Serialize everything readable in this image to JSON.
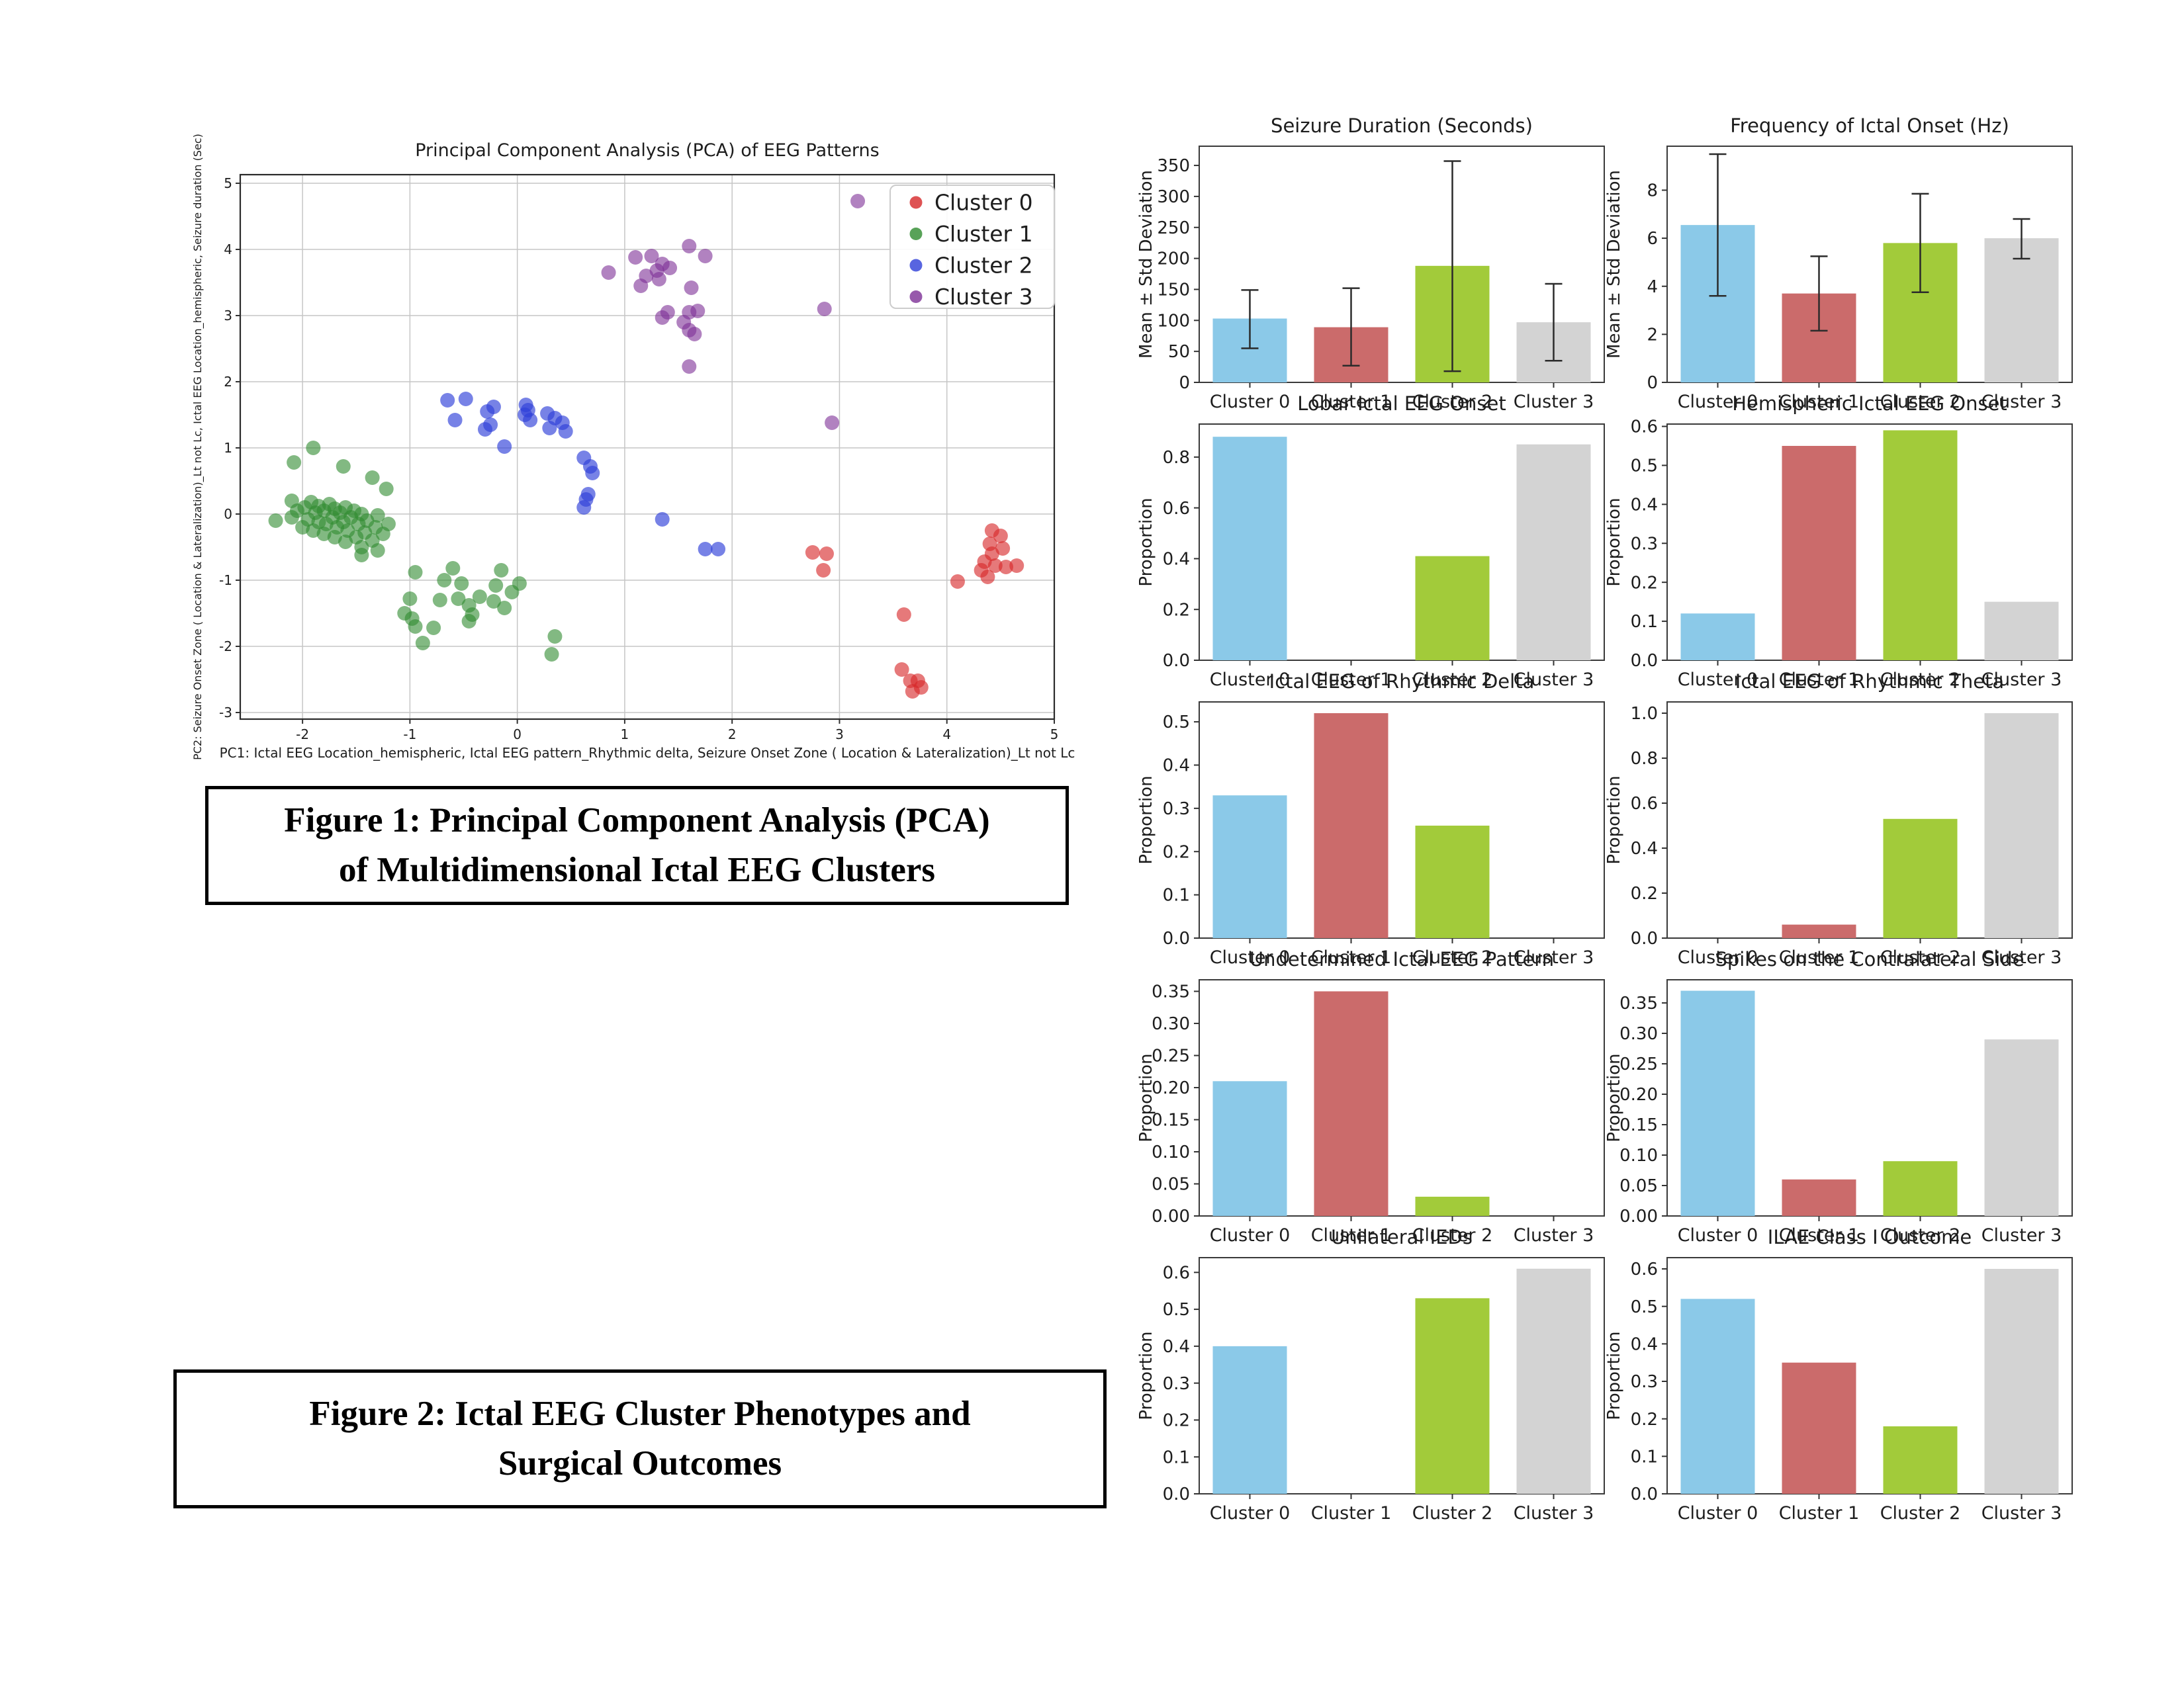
{
  "captions": {
    "figure1": {
      "lines": [
        "Figure 1: Principal Component Analysis (PCA)",
        "of Multidimensional Ictal EEG Clusters"
      ]
    },
    "figure2": {
      "lines": [
        "Figure 2: Ictal EEG Cluster Phenotypes and",
        "Surgical Outcomes"
      ]
    }
  },
  "bar_palette": [
    "#8bc9e8",
    "#cb6b6b",
    "#a2cb3a",
    "#d3d3d3"
  ],
  "chart_data": [
    {
      "type": "scatter",
      "title": "Principal Component Analysis (PCA) of EEG Patterns",
      "xlabel": "PC1: Ictal EEG Location_hemispheric, Ictal EEG pattern_Rhythmic delta, Seizure Onset Zone ( Location & Lateralization)_Lt not Lc",
      "ylabel": "PC2: Seizure Onset Zone ( Location & Lateralization)_Lt not Lc, Ictal EEG Location_hemispheric, Seizure duration (Sec)",
      "xlim": [
        -2.58,
        5.0
      ],
      "ylim": [
        -3.1,
        5.13
      ],
      "xticks": [
        -2,
        -1,
        0,
        1,
        2,
        3,
        4,
        5
      ],
      "yticks": [
        -3,
        -2,
        -1,
        0,
        1,
        2,
        3,
        4,
        5
      ],
      "grid": true,
      "legend_position": "upper right",
      "series": [
        {
          "name": "Cluster 0",
          "color": "#d62728",
          "opacity": 0.62,
          "points": [
            [
              2.75,
              -0.58
            ],
            [
              2.88,
              -0.6
            ],
            [
              2.85,
              -0.85
            ],
            [
              4.42,
              -0.25
            ],
            [
              4.5,
              -0.33
            ],
            [
              4.4,
              -0.45
            ],
            [
              4.52,
              -0.52
            ],
            [
              4.42,
              -0.6
            ],
            [
              4.35,
              -0.72
            ],
            [
              4.45,
              -0.78
            ],
            [
              4.32,
              -0.85
            ],
            [
              4.55,
              -0.8
            ],
            [
              4.65,
              -0.78
            ],
            [
              4.38,
              -0.95
            ],
            [
              4.1,
              -1.02
            ],
            [
              3.6,
              -1.52
            ],
            [
              3.58,
              -2.35
            ],
            [
              3.66,
              -2.52
            ],
            [
              3.73,
              -2.52
            ],
            [
              3.76,
              -2.62
            ],
            [
              3.68,
              -2.68
            ]
          ]
        },
        {
          "name": "Cluster 1",
          "color": "#2e8b2e",
          "opacity": 0.6,
          "points": [
            [
              -2.25,
              -0.1
            ],
            [
              -2.1,
              0.2
            ],
            [
              -2.1,
              -0.05
            ],
            [
              -2.05,
              0.05
            ],
            [
              -2.0,
              -0.2
            ],
            [
              -1.98,
              0.1
            ],
            [
              -1.95,
              -0.08
            ],
            [
              -1.92,
              0.18
            ],
            [
              -1.9,
              -0.25
            ],
            [
              -1.88,
              0.02
            ],
            [
              -1.85,
              -0.12
            ],
            [
              -1.85,
              0.12
            ],
            [
              -1.8,
              -0.3
            ],
            [
              -1.8,
              0.05
            ],
            [
              -1.78,
              -0.15
            ],
            [
              -1.75,
              0.15
            ],
            [
              -1.72,
              -0.05
            ],
            [
              -1.7,
              -0.35
            ],
            [
              -1.7,
              0.08
            ],
            [
              -1.68,
              -0.2
            ],
            [
              -1.65,
              0.02
            ],
            [
              -1.62,
              -0.12
            ],
            [
              -1.6,
              -0.42
            ],
            [
              -1.6,
              0.1
            ],
            [
              -1.58,
              -0.25
            ],
            [
              -1.55,
              -0.05
            ],
            [
              -1.52,
              0.05
            ],
            [
              -1.5,
              -0.35
            ],
            [
              -1.48,
              -0.15
            ],
            [
              -1.45,
              -0.5
            ],
            [
              -1.45,
              0.0
            ],
            [
              -1.42,
              -0.28
            ],
            [
              -1.4,
              -0.1
            ],
            [
              -1.35,
              -0.4
            ],
            [
              -1.32,
              -0.2
            ],
            [
              -1.3,
              -0.02
            ],
            [
              -1.25,
              -0.3
            ],
            [
              -1.2,
              -0.15
            ],
            [
              -1.45,
              -0.62
            ],
            [
              -1.3,
              -0.55
            ],
            [
              -1.9,
              1.0
            ],
            [
              -2.08,
              0.78
            ],
            [
              -1.62,
              0.72
            ],
            [
              -1.35,
              0.55
            ],
            [
              -1.22,
              0.38
            ],
            [
              -0.95,
              -0.88
            ],
            [
              -0.6,
              -0.82
            ],
            [
              -0.15,
              -0.85
            ],
            [
              -0.68,
              -1.0
            ],
            [
              -0.52,
              -1.05
            ],
            [
              -0.2,
              -1.08
            ],
            [
              0.02,
              -1.05
            ],
            [
              -0.05,
              -1.18
            ],
            [
              -1.0,
              -1.28
            ],
            [
              -0.72,
              -1.3
            ],
            [
              -0.55,
              -1.28
            ],
            [
              -0.35,
              -1.25
            ],
            [
              -0.45,
              -1.38
            ],
            [
              -0.22,
              -1.32
            ],
            [
              -0.12,
              -1.42
            ],
            [
              -1.05,
              -1.5
            ],
            [
              -0.98,
              -1.58
            ],
            [
              -0.42,
              -1.52
            ],
            [
              -0.45,
              -1.62
            ],
            [
              -0.95,
              -1.7
            ],
            [
              -0.78,
              -1.72
            ],
            [
              -0.88,
              -1.95
            ],
            [
              0.35,
              -1.85
            ],
            [
              0.32,
              -2.12
            ]
          ]
        },
        {
          "name": "Cluster 2",
          "color": "#2e3fd8",
          "opacity": 0.65,
          "points": [
            [
              -0.65,
              1.72
            ],
            [
              -0.48,
              1.74
            ],
            [
              -0.58,
              1.42
            ],
            [
              -0.28,
              1.55
            ],
            [
              -0.22,
              1.62
            ],
            [
              -0.3,
              1.28
            ],
            [
              -0.25,
              1.35
            ],
            [
              0.08,
              1.65
            ],
            [
              0.1,
              1.57
            ],
            [
              0.07,
              1.5
            ],
            [
              0.12,
              1.42
            ],
            [
              0.28,
              1.52
            ],
            [
              0.35,
              1.45
            ],
            [
              0.42,
              1.38
            ],
            [
              0.3,
              1.3
            ],
            [
              0.45,
              1.25
            ],
            [
              -0.12,
              1.02
            ],
            [
              0.62,
              0.85
            ],
            [
              0.68,
              0.72
            ],
            [
              0.7,
              0.62
            ],
            [
              0.66,
              0.3
            ],
            [
              0.64,
              0.22
            ],
            [
              0.62,
              0.1
            ],
            [
              1.35,
              -0.08
            ],
            [
              1.75,
              -0.53
            ],
            [
              1.87,
              -0.53
            ]
          ]
        },
        {
          "name": "Cluster 3",
          "color": "#7d2f96",
          "opacity": 0.6,
          "points": [
            [
              0.85,
              3.65
            ],
            [
              1.1,
              3.88
            ],
            [
              1.25,
              3.9
            ],
            [
              1.35,
              3.78
            ],
            [
              1.3,
              3.68
            ],
            [
              1.42,
              3.72
            ],
            [
              1.2,
              3.6
            ],
            [
              1.32,
              3.55
            ],
            [
              1.15,
              3.45
            ],
            [
              1.6,
              4.05
            ],
            [
              1.75,
              3.9
            ],
            [
              1.62,
              3.42
            ],
            [
              1.4,
              3.05
            ],
            [
              1.35,
              2.97
            ],
            [
              1.6,
              3.05
            ],
            [
              1.68,
              3.07
            ],
            [
              1.55,
              2.9
            ],
            [
              1.6,
              2.78
            ],
            [
              1.65,
              2.72
            ],
            [
              1.6,
              2.23
            ],
            [
              2.86,
              3.1
            ],
            [
              3.17,
              4.73
            ],
            [
              2.93,
              1.38
            ]
          ]
        }
      ]
    },
    {
      "type": "bar",
      "title": "Seizure Duration (Seconds)",
      "ylabel": "Mean ± Std Deviation",
      "categories": [
        "Cluster 0",
        "Cluster 1",
        "Cluster 2",
        "Cluster 3"
      ],
      "values": [
        103,
        89,
        188,
        97
      ],
      "err_low": [
        55,
        27,
        18,
        35
      ],
      "err_high": [
        149,
        152,
        357,
        159
      ],
      "yticks": [
        0,
        50,
        100,
        150,
        200,
        250,
        300,
        350
      ],
      "ylim": [
        0,
        381
      ],
      "tick_decimals": 0
    },
    {
      "type": "bar",
      "title": "Frequency of Ictal Onset (Hz)",
      "ylabel": "Mean ± Std Deviation",
      "categories": [
        "Cluster 0",
        "Cluster 1",
        "Cluster 2",
        "Cluster 3"
      ],
      "values": [
        6.55,
        3.7,
        5.8,
        6.0
      ],
      "err_low": [
        3.6,
        2.15,
        3.75,
        5.15
      ],
      "err_high": [
        9.5,
        5.25,
        7.85,
        6.8
      ],
      "yticks": [
        0,
        2,
        4,
        6,
        8
      ],
      "ylim": [
        0,
        9.83
      ],
      "tick_decimals": 0
    },
    {
      "type": "bar",
      "title": "Lobar Ictal EEG Onset",
      "ylabel": "Proportion",
      "categories": [
        "Cluster 0",
        "Cluster 1",
        "Cluster 2",
        "Cluster 3"
      ],
      "values": [
        0.88,
        0,
        0.41,
        0.85
      ],
      "yticks": [
        0.0,
        0.2,
        0.4,
        0.6,
        0.8
      ],
      "ylim": [
        0,
        0.93
      ],
      "tick_decimals": 1
    },
    {
      "type": "bar",
      "title": "Hemispheric Ictal EEG Onset",
      "ylabel": "Proportion",
      "categories": [
        "Cluster 0",
        "Cluster 1",
        "Cluster 2",
        "Cluster 3"
      ],
      "values": [
        0.12,
        0.55,
        0.59,
        0.15
      ],
      "yticks": [
        0.0,
        0.1,
        0.2,
        0.3,
        0.4,
        0.5,
        0.6
      ],
      "ylim": [
        0,
        0.606
      ],
      "tick_decimals": 1
    },
    {
      "type": "bar",
      "title": "Ictal EEG of Rhythmic Delta",
      "ylabel": "Proportion",
      "categories": [
        "Cluster 0",
        "Cluster 1",
        "Cluster 2",
        "Cluster 3"
      ],
      "values": [
        0.33,
        0.52,
        0.26,
        0
      ],
      "yticks": [
        0.0,
        0.1,
        0.2,
        0.3,
        0.4,
        0.5
      ],
      "ylim": [
        0,
        0.546
      ],
      "tick_decimals": 1
    },
    {
      "type": "bar",
      "title": "Ictal EEG of Rhythmic Theta",
      "ylabel": "Proportion",
      "categories": [
        "Cluster 0",
        "Cluster 1",
        "Cluster 2",
        "Cluster 3"
      ],
      "values": [
        0,
        0.06,
        0.53,
        1.0
      ],
      "yticks": [
        0.0,
        0.2,
        0.4,
        0.6,
        0.8,
        1.0
      ],
      "ylim": [
        0,
        1.05
      ],
      "tick_decimals": 1
    },
    {
      "type": "bar",
      "title": "Undetermined Ictal EEG Pattern",
      "ylabel": "Proportion",
      "categories": [
        "Cluster 0",
        "Cluster 1",
        "Cluster 2",
        "Cluster 3"
      ],
      "values": [
        0.21,
        0.35,
        0.03,
        0
      ],
      "yticks": [
        0.0,
        0.05,
        0.1,
        0.15,
        0.2,
        0.25,
        0.3,
        0.35
      ],
      "ylim": [
        0,
        0.368
      ],
      "tick_decimals": 2
    },
    {
      "type": "bar",
      "title": "Spikes on the Contralateral Side",
      "ylabel": "Proportion",
      "categories": [
        "Cluster 0",
        "Cluster 1",
        "Cluster 2",
        "Cluster 3"
      ],
      "values": [
        0.37,
        0.06,
        0.09,
        0.29
      ],
      "yticks": [
        0.0,
        0.05,
        0.1,
        0.15,
        0.2,
        0.25,
        0.3,
        0.35
      ],
      "ylim": [
        0,
        0.388
      ],
      "tick_decimals": 2
    },
    {
      "type": "bar",
      "title": "Unilateral IEDs",
      "ylabel": "Proportion",
      "categories": [
        "Cluster 0",
        "Cluster 1",
        "Cluster 2",
        "Cluster 3"
      ],
      "values": [
        0.4,
        0,
        0.53,
        0.61
      ],
      "yticks": [
        0.0,
        0.1,
        0.2,
        0.3,
        0.4,
        0.5,
        0.6
      ],
      "ylim": [
        0,
        0.64
      ],
      "tick_decimals": 1
    },
    {
      "type": "bar",
      "title": "ILAE Class I Outcome",
      "ylabel": "Proportion",
      "categories": [
        "Cluster 0",
        "Cluster 1",
        "Cluster 2",
        "Cluster 3"
      ],
      "values": [
        0.52,
        0.35,
        0.18,
        0.6
      ],
      "yticks": [
        0.0,
        0.1,
        0.2,
        0.3,
        0.4,
        0.5,
        0.6
      ],
      "ylim": [
        0,
        0.63
      ],
      "tick_decimals": 1
    }
  ]
}
